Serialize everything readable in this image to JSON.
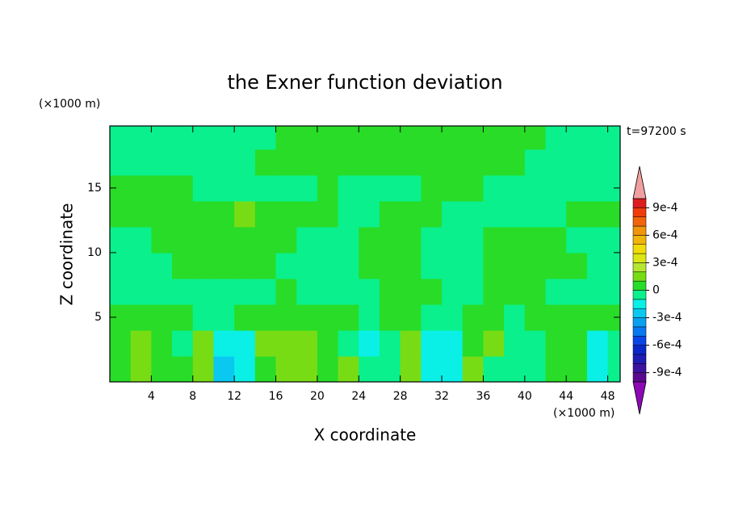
{
  "chart_data": {
    "type": "contour",
    "title": "the Exner function deviation",
    "x_label": "X coordinate",
    "y_label": "Z coordinate",
    "x_unit": "(×1000 m)",
    "y_unit": "(×1000 m)",
    "time_label": "t=97200 s",
    "xlim": [
      0,
      49.2
    ],
    "ylim": [
      0,
      19.8
    ],
    "xticks": [
      4,
      8,
      12,
      16,
      20,
      24,
      28,
      32,
      36,
      40,
      44,
      48
    ],
    "yticks": [
      5,
      10,
      15
    ],
    "x": [
      1,
      3,
      5,
      7,
      9,
      11,
      13,
      15,
      17,
      19,
      21,
      23,
      25,
      27,
      29,
      31,
      33,
      35,
      37,
      39,
      41,
      43,
      45,
      47,
      49
    ],
    "y": [
      1,
      3,
      5,
      7,
      9,
      11,
      13,
      15,
      17,
      19
    ],
    "z": [
      [
        5e-05,
        0.00015,
        5e-05,
        5e-05,
        0.00015,
        -0.00025,
        -0.00015,
        5e-05,
        0.00015,
        0.00015,
        5e-05,
        0.00015,
        -5e-05,
        -5e-05,
        0.00015,
        -0.00015,
        -0.00015,
        0.00015,
        -5e-05,
        -5e-05,
        -5e-05,
        5e-05,
        5e-05,
        -0.00015,
        -5e-05
      ],
      [
        5e-05,
        0.00015,
        5e-05,
        -5e-05,
        0.00015,
        -0.00015,
        -0.00015,
        0.00015,
        0.00015,
        0.00015,
        5e-05,
        -5e-05,
        -0.00015,
        -5e-05,
        0.00015,
        -0.00015,
        -0.00015,
        5e-05,
        0.00015,
        -5e-05,
        -5e-05,
        5e-05,
        5e-05,
        -0.00015,
        -5e-05
      ],
      [
        5e-05,
        5e-05,
        5e-05,
        5e-05,
        -5e-05,
        -5e-05,
        5e-05,
        5e-05,
        5e-05,
        5e-05,
        5e-05,
        5e-05,
        -5e-05,
        5e-05,
        5e-05,
        -5e-05,
        -5e-05,
        5e-05,
        5e-05,
        -5e-05,
        5e-05,
        5e-05,
        5e-05,
        5e-05,
        5e-05
      ],
      [
        -5e-05,
        -5e-05,
        -5e-05,
        -5e-05,
        -5e-05,
        -5e-05,
        -5e-05,
        -5e-05,
        5e-05,
        -5e-05,
        -5e-05,
        -5e-05,
        -5e-05,
        5e-05,
        5e-05,
        5e-05,
        -5e-05,
        -5e-05,
        5e-05,
        5e-05,
        5e-05,
        -5e-05,
        -5e-05,
        -5e-05,
        -5e-05
      ],
      [
        -5e-05,
        -5e-05,
        -5e-05,
        5e-05,
        5e-05,
        5e-05,
        5e-05,
        5e-05,
        -5e-05,
        -5e-05,
        -5e-05,
        -5e-05,
        5e-05,
        5e-05,
        5e-05,
        -5e-05,
        -5e-05,
        -5e-05,
        5e-05,
        5e-05,
        5e-05,
        5e-05,
        5e-05,
        -5e-05,
        -5e-05
      ],
      [
        -5e-05,
        -5e-05,
        5e-05,
        5e-05,
        5e-05,
        5e-05,
        5e-05,
        5e-05,
        5e-05,
        -5e-05,
        -5e-05,
        -5e-05,
        5e-05,
        5e-05,
        5e-05,
        -5e-05,
        -5e-05,
        -5e-05,
        5e-05,
        5e-05,
        5e-05,
        5e-05,
        -5e-05,
        -5e-05,
        -5e-05
      ],
      [
        5e-05,
        5e-05,
        5e-05,
        5e-05,
        5e-05,
        5e-05,
        0.00015,
        5e-05,
        5e-05,
        5e-05,
        5e-05,
        -5e-05,
        -5e-05,
        5e-05,
        5e-05,
        5e-05,
        -5e-05,
        -5e-05,
        -5e-05,
        -5e-05,
        -5e-05,
        -5e-05,
        5e-05,
        5e-05,
        5e-05
      ],
      [
        5e-05,
        5e-05,
        5e-05,
        5e-05,
        -5e-05,
        -5e-05,
        -5e-05,
        -5e-05,
        -5e-05,
        -5e-05,
        5e-05,
        -5e-05,
        -5e-05,
        -5e-05,
        -5e-05,
        5e-05,
        5e-05,
        5e-05,
        -5e-05,
        -5e-05,
        -5e-05,
        -5e-05,
        -5e-05,
        -5e-05,
        -5e-05
      ],
      [
        -5e-05,
        -5e-05,
        -5e-05,
        -5e-05,
        -5e-05,
        -5e-05,
        -5e-05,
        5e-05,
        5e-05,
        5e-05,
        5e-05,
        5e-05,
        5e-05,
        5e-05,
        5e-05,
        5e-05,
        5e-05,
        5e-05,
        5e-05,
        5e-05,
        -5e-05,
        -5e-05,
        -5e-05,
        -5e-05,
        -5e-05
      ],
      [
        -5e-05,
        -5e-05,
        -5e-05,
        -5e-05,
        -5e-05,
        -5e-05,
        -5e-05,
        -5e-05,
        5e-05,
        5e-05,
        5e-05,
        5e-05,
        5e-05,
        5e-05,
        5e-05,
        5e-05,
        5e-05,
        5e-05,
        5e-05,
        5e-05,
        5e-05,
        -5e-05,
        -5e-05,
        -5e-05,
        -5e-05
      ]
    ],
    "colorbar": {
      "levels": [
        -0.001,
        -0.0009,
        -0.0008,
        -0.0007,
        -0.0006,
        -0.0005,
        -0.0004,
        -0.0003,
        -0.0002,
        -0.0001,
        0,
        0.0001,
        0.0002,
        0.0003,
        0.0004,
        0.0005,
        0.0006,
        0.0007,
        0.0008,
        0.0009,
        0.001
      ],
      "colors": [
        "#5a0a8c",
        "#3c14a0",
        "#1e1eb4",
        "#0a28c8",
        "#0a46e6",
        "#0a78f0",
        "#0aa0f0",
        "#0ac8f0",
        "#0af0e6",
        "#0af08c",
        "#28dc28",
        "#78dc14",
        "#b4e632",
        "#dce614",
        "#f0dc0a",
        "#f0b40a",
        "#f0960a",
        "#f0640a",
        "#f03c0a",
        "#dc1e1e"
      ],
      "extend_colors": [
        "#8c0ab4",
        "#f0a0a0"
      ],
      "ticks": [
        {
          "value": -0.0009,
          "label": "-9e-4"
        },
        {
          "value": -0.0006,
          "label": "-6e-4"
        },
        {
          "value": -0.0003,
          "label": "-3e-4"
        },
        0,
        {
          "value": 0.0003,
          "label": "3e-4"
        },
        {
          "value": 0.0006,
          "label": "6e-4"
        },
        {
          "value": 0.0009,
          "label": "9e-4"
        }
      ]
    }
  }
}
